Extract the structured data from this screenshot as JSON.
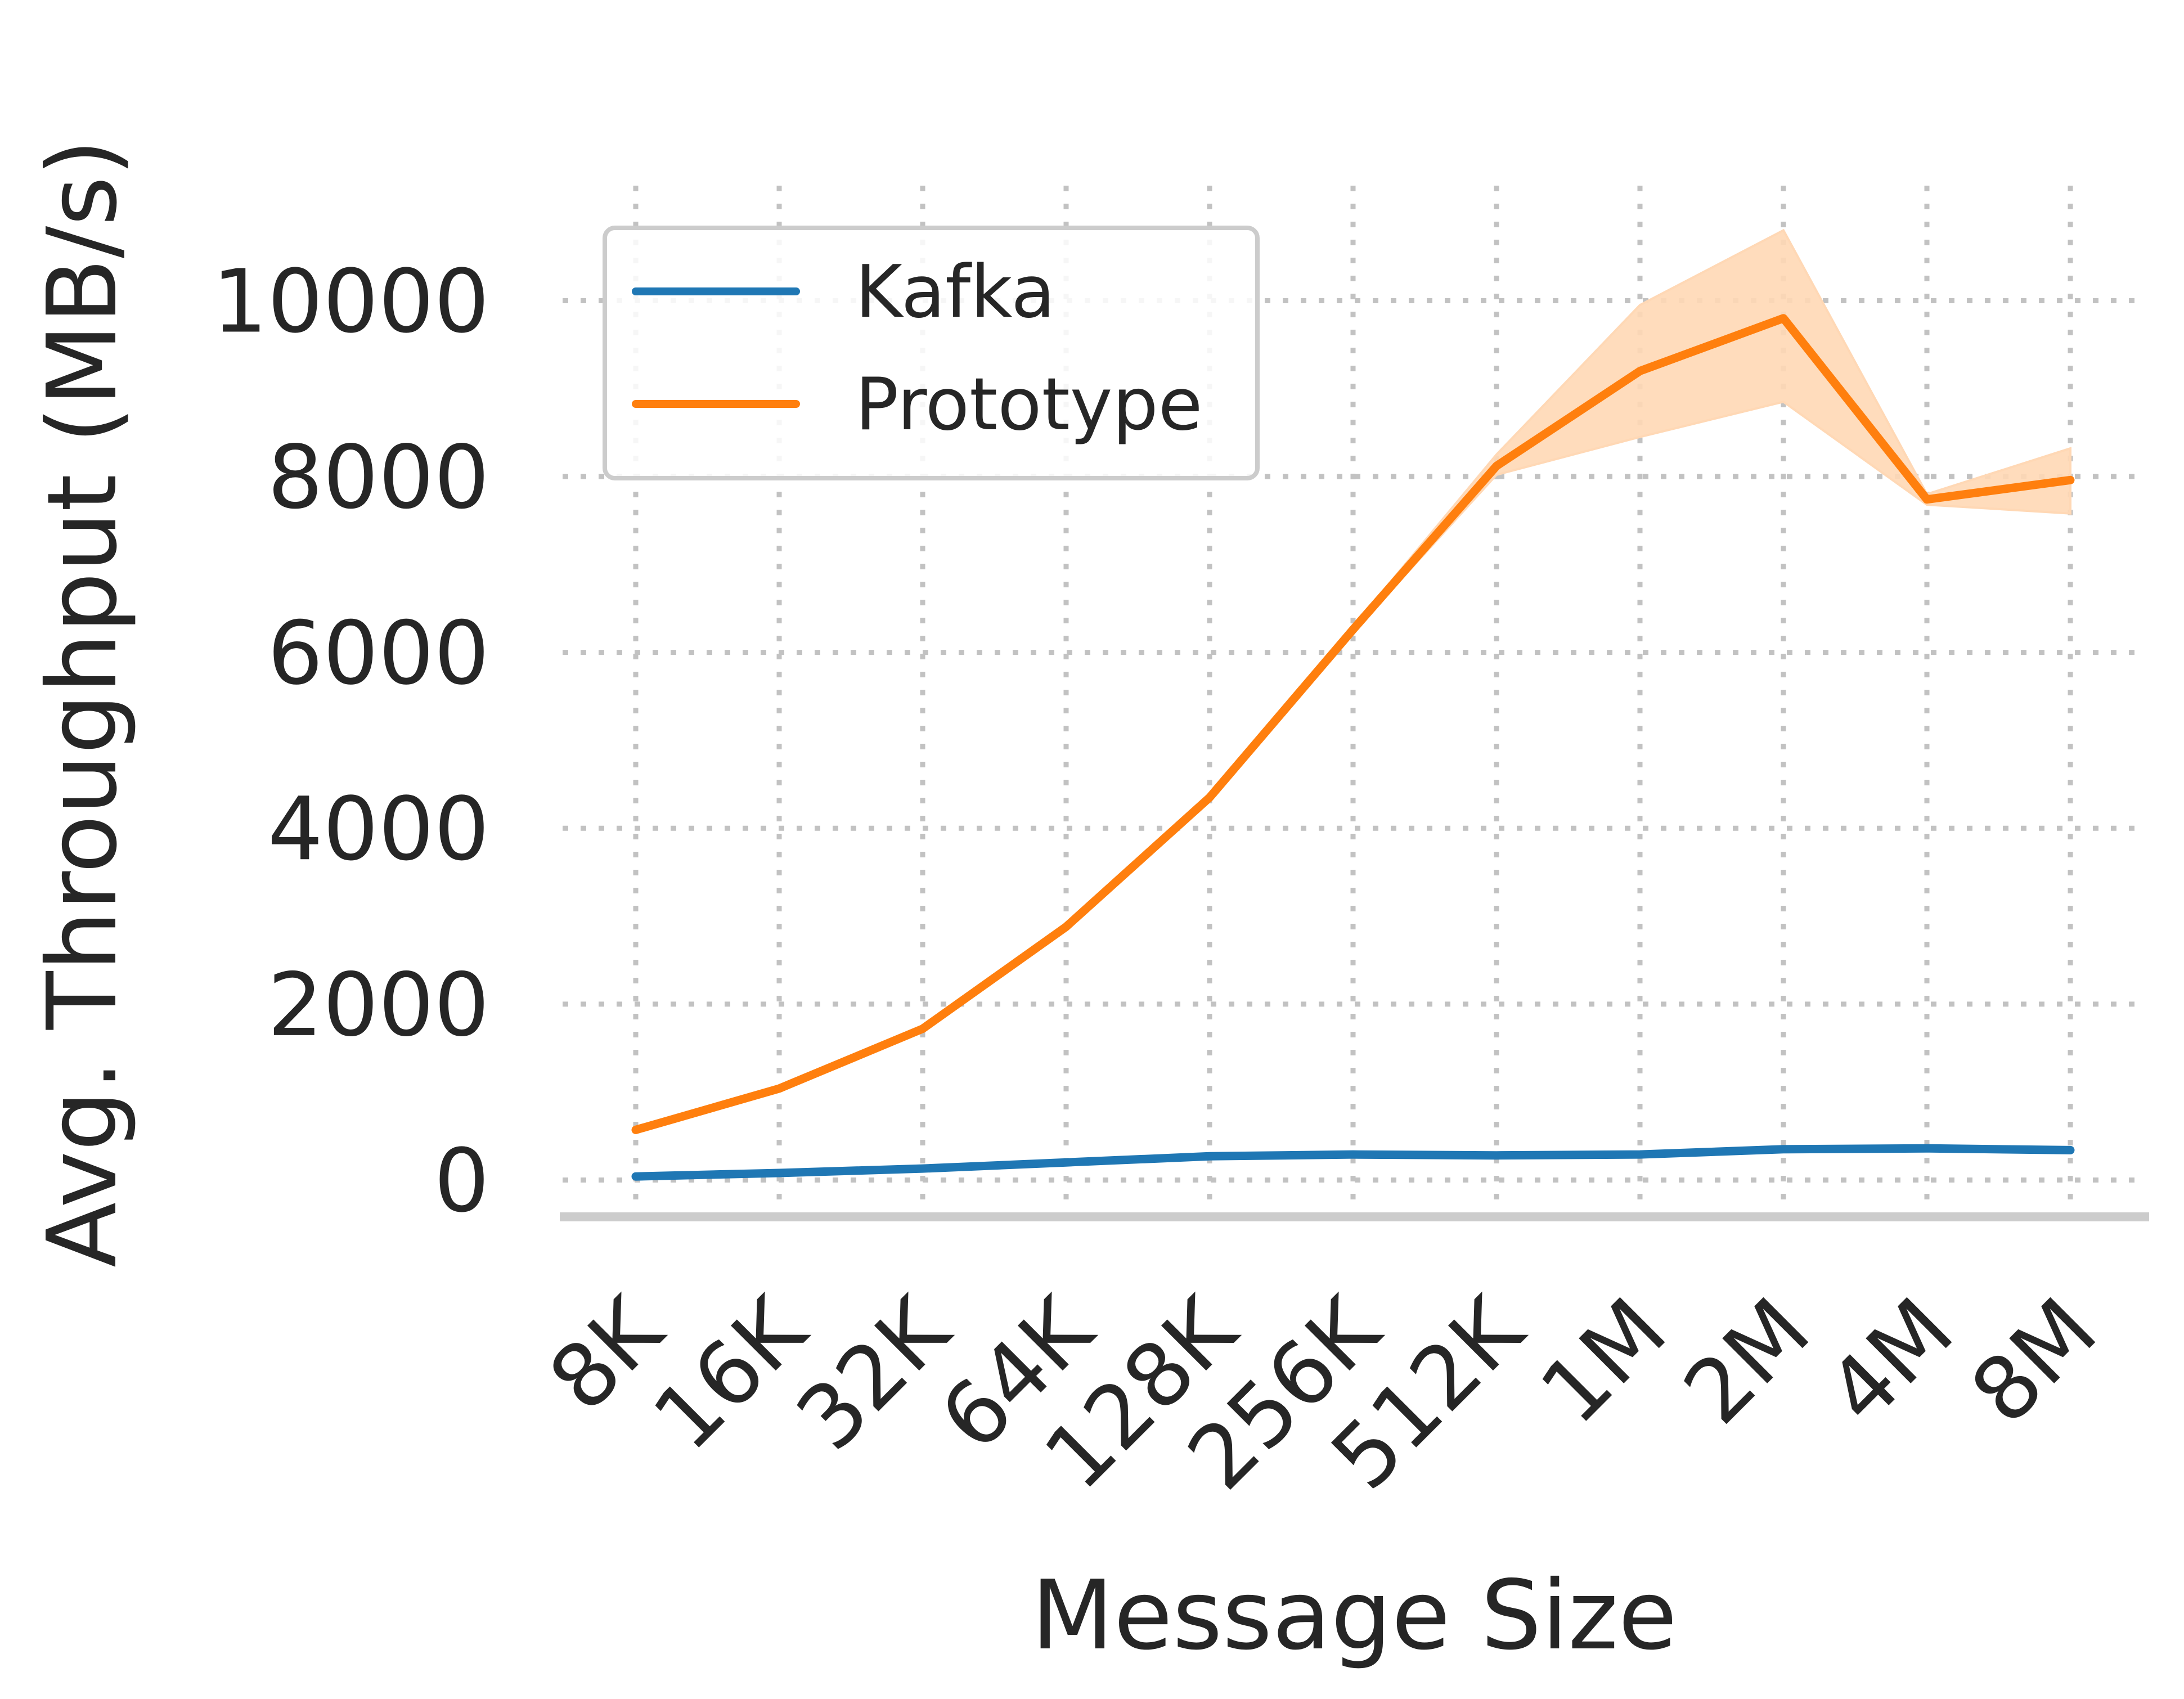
{
  "chart_data": {
    "type": "line",
    "title": "",
    "xlabel": "Message Size",
    "ylabel": "Avg. Throughput (MB/s)",
    "categories": [
      "8K",
      "16K",
      "32K",
      "64K",
      "128K",
      "256K",
      "512K",
      "1M",
      "2M",
      "4M",
      "8M"
    ],
    "yticks": [
      "0",
      "2000",
      "4000",
      "6000",
      "8000",
      "10000"
    ],
    "ylim": [
      -400,
      11500
    ],
    "grid": true,
    "legend_position": "top-left",
    "series": [
      {
        "name": "Kafka",
        "color": "#1f77b4",
        "values": [
          40,
          80,
          130,
          200,
          270,
          290,
          280,
          290,
          350,
          360,
          340
        ]
      },
      {
        "name": "Prototype",
        "color": "#ff7f0e",
        "band_color": "#ffd8b5",
        "values": [
          570,
          1040,
          1720,
          2880,
          4350,
          6260,
          8120,
          9200,
          9800,
          7740,
          7960
        ],
        "band_lower": [
          560,
          1030,
          1700,
          2850,
          4330,
          6230,
          8020,
          8450,
          8850,
          7680,
          7580
        ],
        "band_upper": [
          585,
          1055,
          1740,
          2910,
          4375,
          6290,
          8250,
          9950,
          10800,
          7800,
          8320
        ]
      }
    ]
  }
}
